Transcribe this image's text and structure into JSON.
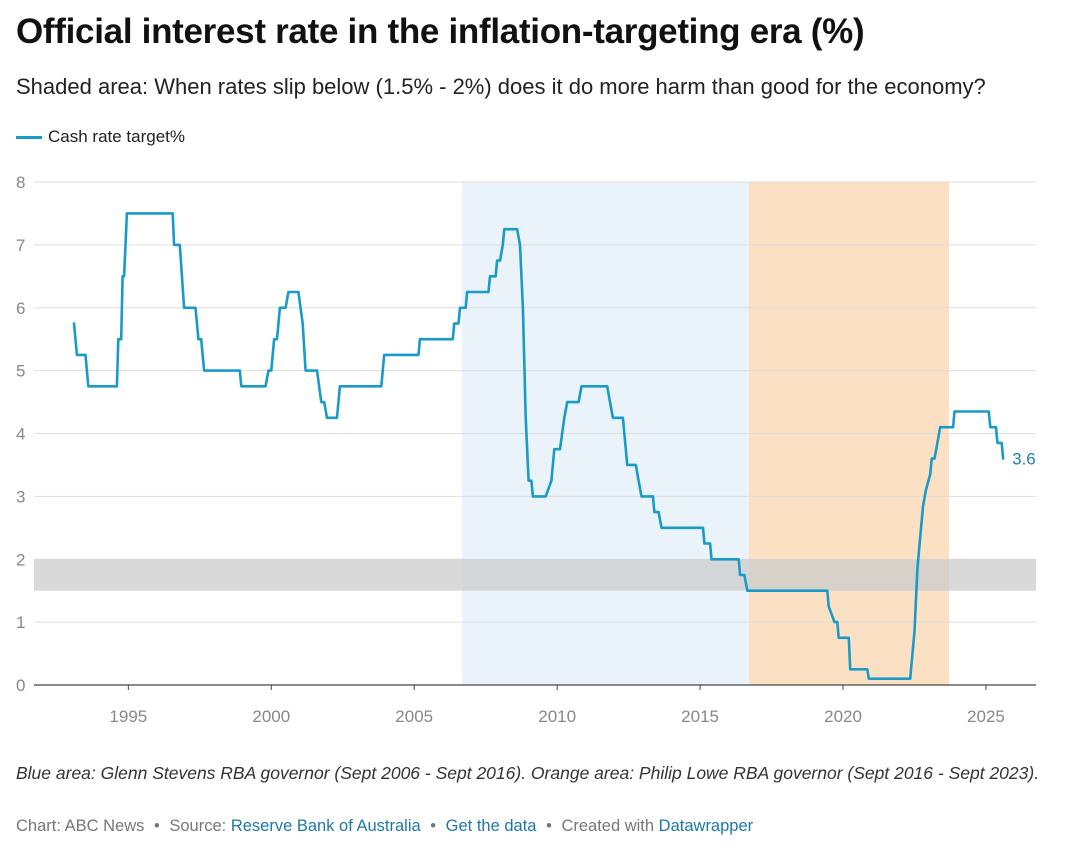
{
  "title": "Official interest rate in the inflation-targeting era (%)",
  "subtitle": "Shaded area: When rates slip below (1.5% - 2%) does it do more harm than good for the economy?",
  "legend": {
    "label": "Cash rate target%",
    "color": "#1a9bc7"
  },
  "note": "Blue area: Glenn Stevens RBA governor (Sept 2006 - Sept 2016). Orange area: Philip Lowe RBA governor (Sept 2016 - Sept 2023).",
  "footer": {
    "chart_by": "Chart: ABC News",
    "source_prefix": "Source:",
    "source_link": "Reserve Bank of Australia",
    "get_data": "Get the data",
    "created_prefix": "Created with",
    "created_link": "Datawrapper",
    "bullet": "•"
  },
  "colors": {
    "line": "#1a9bc7",
    "stevens_band": "#e9f3f9",
    "lowe_band": "#fce0c4",
    "threshold_band": "#cccccc",
    "grid": "#dddddd",
    "tick_text": "#888888",
    "end_label": "#1a7fb0"
  },
  "chart_data": {
    "type": "line",
    "title": "Official interest rate in the inflation-targeting era (%)",
    "series": [
      {
        "name": "Cash rate target%",
        "end_label": "3.6",
        "points": [
          [
            1993.1,
            5.75
          ],
          [
            1993.2,
            5.25
          ],
          [
            1993.5,
            5.25
          ],
          [
            1993.6,
            4.75
          ],
          [
            1994.6,
            4.75
          ],
          [
            1994.65,
            5.5
          ],
          [
            1994.75,
            5.5
          ],
          [
            1994.8,
            6.5
          ],
          [
            1994.85,
            6.5
          ],
          [
            1994.95,
            7.5
          ],
          [
            1996.55,
            7.5
          ],
          [
            1996.6,
            7.0
          ],
          [
            1996.8,
            7.0
          ],
          [
            1996.95,
            6.0
          ],
          [
            1997.35,
            6.0
          ],
          [
            1997.45,
            5.5
          ],
          [
            1997.55,
            5.5
          ],
          [
            1997.65,
            5.0
          ],
          [
            1998.9,
            5.0
          ],
          [
            1998.95,
            4.75
          ],
          [
            1999.8,
            4.75
          ],
          [
            1999.9,
            5.0
          ],
          [
            2000.0,
            5.0
          ],
          [
            2000.1,
            5.5
          ],
          [
            2000.2,
            5.5
          ],
          [
            2000.3,
            6.0
          ],
          [
            2000.5,
            6.0
          ],
          [
            2000.6,
            6.25
          ],
          [
            2000.95,
            6.25
          ],
          [
            2001.1,
            5.75
          ],
          [
            2001.2,
            5.0
          ],
          [
            2001.6,
            5.0
          ],
          [
            2001.75,
            4.5
          ],
          [
            2001.85,
            4.5
          ],
          [
            2001.95,
            4.25
          ],
          [
            2002.3,
            4.25
          ],
          [
            2002.4,
            4.75
          ],
          [
            2003.85,
            4.75
          ],
          [
            2003.95,
            5.25
          ],
          [
            2005.15,
            5.25
          ],
          [
            2005.2,
            5.5
          ],
          [
            2006.35,
            5.5
          ],
          [
            2006.4,
            5.75
          ],
          [
            2006.55,
            5.75
          ],
          [
            2006.6,
            6.0
          ],
          [
            2006.8,
            6.0
          ],
          [
            2006.85,
            6.25
          ],
          [
            2007.6,
            6.25
          ],
          [
            2007.65,
            6.5
          ],
          [
            2007.85,
            6.5
          ],
          [
            2007.9,
            6.75
          ],
          [
            2008.0,
            6.75
          ],
          [
            2008.1,
            7.0
          ],
          [
            2008.15,
            7.25
          ],
          [
            2008.6,
            7.25
          ],
          [
            2008.7,
            7.0
          ],
          [
            2008.8,
            6.0
          ],
          [
            2008.9,
            4.25
          ],
          [
            2009.0,
            3.25
          ],
          [
            2009.1,
            3.25
          ],
          [
            2009.15,
            3.0
          ],
          [
            2009.6,
            3.0
          ],
          [
            2009.8,
            3.25
          ],
          [
            2009.9,
            3.75
          ],
          [
            2010.1,
            3.75
          ],
          [
            2010.25,
            4.25
          ],
          [
            2010.35,
            4.5
          ],
          [
            2010.75,
            4.5
          ],
          [
            2010.85,
            4.75
          ],
          [
            2011.75,
            4.75
          ],
          [
            2011.85,
            4.5
          ],
          [
            2011.95,
            4.25
          ],
          [
            2012.3,
            4.25
          ],
          [
            2012.4,
            3.75
          ],
          [
            2012.45,
            3.5
          ],
          [
            2012.75,
            3.5
          ],
          [
            2012.85,
            3.25
          ],
          [
            2012.95,
            3.0
          ],
          [
            2013.35,
            3.0
          ],
          [
            2013.4,
            2.75
          ],
          [
            2013.55,
            2.75
          ],
          [
            2013.65,
            2.5
          ],
          [
            2015.1,
            2.5
          ],
          [
            2015.15,
            2.25
          ],
          [
            2015.35,
            2.25
          ],
          [
            2015.4,
            2.0
          ],
          [
            2016.35,
            2.0
          ],
          [
            2016.4,
            1.75
          ],
          [
            2016.55,
            1.75
          ],
          [
            2016.65,
            1.5
          ],
          [
            2019.45,
            1.5
          ],
          [
            2019.5,
            1.25
          ],
          [
            2019.7,
            1.0
          ],
          [
            2019.8,
            1.0
          ],
          [
            2019.85,
            0.75
          ],
          [
            2020.2,
            0.75
          ],
          [
            2020.25,
            0.25
          ],
          [
            2020.85,
            0.25
          ],
          [
            2020.9,
            0.1
          ],
          [
            2022.35,
            0.1
          ],
          [
            2022.4,
            0.35
          ],
          [
            2022.5,
            0.85
          ],
          [
            2022.6,
            1.85
          ],
          [
            2022.7,
            2.35
          ],
          [
            2022.8,
            2.85
          ],
          [
            2022.9,
            3.1
          ],
          [
            2023.05,
            3.35
          ],
          [
            2023.1,
            3.6
          ],
          [
            2023.2,
            3.6
          ],
          [
            2023.3,
            3.85
          ],
          [
            2023.4,
            4.1
          ],
          [
            2023.85,
            4.1
          ],
          [
            2023.9,
            4.35
          ],
          [
            2025.1,
            4.35
          ],
          [
            2025.15,
            4.1
          ],
          [
            2025.35,
            4.1
          ],
          [
            2025.4,
            3.85
          ],
          [
            2025.55,
            3.85
          ],
          [
            2025.6,
            3.6
          ]
        ]
      }
    ],
    "x_ticks": [
      "1995",
      "2000",
      "2005",
      "2010",
      "2015",
      "2020",
      "2025"
    ],
    "y_ticks": [
      "0",
      "1",
      "2",
      "3",
      "4",
      "5",
      "6",
      "7",
      "8"
    ],
    "xlim": [
      1991.7,
      2026.75
    ],
    "ylim": [
      0,
      8
    ],
    "bands": [
      {
        "name": "stevens",
        "x": [
          2006.67,
          2016.71
        ]
      },
      {
        "name": "lowe",
        "x": [
          2016.71,
          2023.71
        ]
      }
    ],
    "threshold_band": [
      1.5,
      2.0
    ],
    "grid": true,
    "legend_position": "top-left"
  }
}
